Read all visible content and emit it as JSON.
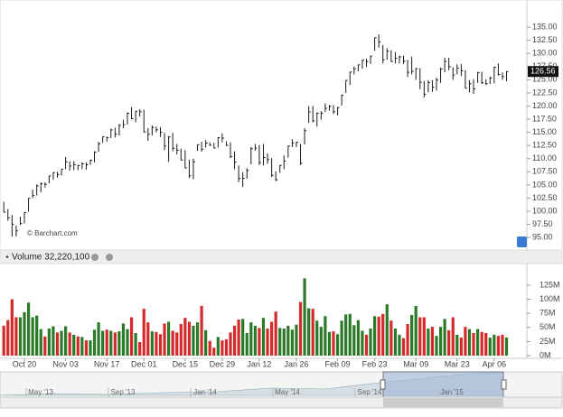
{
  "chart_data": {
    "type": "ohlc",
    "credit": "© Barchart.com",
    "categories": [
      null,
      null,
      null,
      null,
      null,
      "Oct 20",
      null,
      null,
      null,
      null,
      null,
      null,
      null,
      null,
      null,
      "Nov 03",
      null,
      null,
      null,
      null,
      null,
      null,
      null,
      null,
      null,
      "Nov 17",
      null,
      null,
      null,
      null,
      null,
      null,
      null,
      null,
      "Dec 01",
      null,
      null,
      null,
      null,
      null,
      null,
      null,
      null,
      null,
      "Dec 15",
      null,
      null,
      null,
      null,
      null,
      null,
      null,
      null,
      "Dec 29",
      null,
      null,
      null,
      null,
      null,
      null,
      null,
      null,
      "Jan 12",
      null,
      null,
      null,
      null,
      null,
      null,
      null,
      null,
      "Jan 26",
      null,
      null,
      null,
      null,
      null,
      null,
      null,
      null,
      null,
      "Feb 09",
      null,
      null,
      null,
      null,
      null,
      null,
      null,
      null,
      "Feb 23",
      null,
      null,
      null,
      null,
      null,
      null,
      null,
      null,
      null,
      "Mar 09",
      null,
      null,
      null,
      null,
      null,
      null,
      null,
      null,
      null,
      "Mar 23",
      null,
      null,
      null,
      null,
      null,
      null,
      null,
      null,
      "Apr 06",
      null,
      null,
      null
    ],
    "high": [
      101.8,
      100.4,
      99.3,
      97.3,
      99.0,
      99.8,
      102.5,
      104.1,
      105.1,
      105.5,
      105.5,
      106.7,
      107.4,
      107.5,
      108.0,
      110.3,
      109.5,
      109.5,
      108.8,
      109.3,
      109.3,
      109.8,
      111.4,
      113.2,
      114.2,
      114.2,
      115.7,
      115.9,
      116.6,
      117.4,
      118.8,
      119.8,
      119.1,
      119.4,
      119.3,
      115.8,
      116.3,
      116.1,
      116.0,
      114.9,
      114.3,
      114.9,
      112.8,
      111.9,
      111.6,
      109.8,
      110.0,
      112.7,
      113.2,
      113.5,
      113.1,
      113.0,
      114.1,
      114.8,
      113.3,
      113.1,
      111.4,
      108.7,
      107.4,
      108.2,
      112.2,
      112.8,
      112.6,
      112.8,
      111.0,
      110.1,
      107.6,
      108.8,
      110.6,
      112.5,
      113.7,
      113.2,
      112.8,
      115.8,
      120.0,
      120.0,
      118.8,
      119.0,
      120.5,
      120.2,
      120.2,
      119.8,
      122.2,
      124.9,
      126.5,
      127.5,
      127.9,
      128.8,
      129.0,
      129.5,
      133.0,
      133.6,
      131.6,
      131.0,
      130.6,
      130.3,
      129.6,
      129.6,
      128.8,
      129.4,
      127.2,
      127.2,
      124.8,
      124.9,
      124.9,
      125.4,
      127.3,
      129.2,
      129.2,
      127.4,
      127.9,
      128.0,
      126.8,
      124.9,
      125.1,
      126.5,
      126.5,
      125.1,
      125.6,
      127.5,
      128.1,
      126.4,
      126.6
    ],
    "low": [
      99.8,
      98.2,
      95.2,
      95.2,
      97.4,
      97.7,
      99.9,
      102.5,
      103.0,
      103.6,
      104.5,
      105.3,
      106.0,
      106.4,
      106.8,
      108.0,
      107.7,
      107.8,
      107.8,
      108.0,
      107.9,
      108.8,
      109.3,
      111.3,
      113.0,
      113.2,
      113.9,
      114.0,
      114.4,
      115.8,
      116.5,
      117.5,
      116.9,
      118.0,
      115.0,
      113.4,
      114.4,
      115.0,
      114.1,
      111.6,
      109.4,
      111.4,
      110.8,
      109.7,
      108.2,
      106.3,
      106.1,
      111.5,
      111.3,
      112.1,
      112.4,
      112.0,
      112.1,
      113.1,
      112.4,
      110.1,
      108.0,
      105.5,
      104.6,
      106.2,
      108.9,
      111.5,
      108.8,
      108.7,
      109.0,
      106.5,
      105.7,
      107.3,
      108.0,
      110.2,
      112.2,
      112.2,
      108.8,
      112.7,
      116.8,
      116.9,
      116.1,
      117.4,
      118.9,
      119.1,
      118.5,
      118.2,
      120.1,
      122.5,
      124.0,
      126.0,
      126.6,
      127.1,
      127.4,
      128.0,
      130.5,
      131.1,
      128.1,
      128.8,
      128.4,
      128.1,
      128.1,
      128.0,
      125.5,
      126.0,
      125.0,
      123.2,
      121.6,
      122.6,
      122.7,
      122.9,
      124.4,
      126.4,
      126.8,
      125.0,
      126.0,
      125.7,
      123.4,
      122.6,
      122.3,
      124.4,
      124.2,
      124.0,
      124.2,
      124.3,
      125.8,
      125.0,
      124.7
    ],
    "close": [
      99.81,
      98.75,
      97.54,
      96.26,
      97.67,
      99.76,
      102.47,
      102.99,
      104.83,
      105.22,
      105.11,
      106.74,
      107.34,
      106.98,
      108.0,
      109.4,
      108.6,
      108.86,
      108.7,
      109.01,
      108.83,
      109.7,
      111.25,
      112.82,
      114.18,
      113.99,
      115.47,
      114.67,
      116.31,
      116.47,
      118.63,
      117.6,
      119.0,
      118.93,
      115.07,
      114.63,
      115.93,
      115.49,
      115.0,
      112.4,
      114.12,
      111.95,
      111.62,
      109.73,
      108.23,
      106.75,
      109.41,
      112.65,
      111.78,
      112.94,
      112.54,
      112.01,
      113.99,
      113.91,
      112.52,
      110.38,
      109.33,
      106.25,
      106.26,
      107.75,
      111.89,
      112.01,
      109.25,
      110.22,
      109.8,
      106.82,
      105.99,
      108.72,
      109.55,
      112.4,
      112.98,
      113.1,
      109.14,
      115.31,
      118.9,
      117.16,
      118.63,
      118.65,
      119.56,
      119.94,
      118.93,
      119.72,
      122.02,
      124.88,
      126.46,
      127.08,
      127.83,
      128.72,
      128.45,
      129.5,
      133.0,
      132.17,
      128.79,
      130.42,
      128.46,
      129.09,
      129.36,
      128.54,
      126.41,
      126.6,
      127.14,
      124.51,
      122.24,
      124.45,
      123.59,
      124.95,
      127.04,
      128.47,
      127.5,
      125.9,
      127.21,
      126.69,
      123.38,
      124.24,
      123.25,
      126.37,
      124.43,
      124.25,
      125.32,
      127.35,
      126.01,
      125.6,
      126.56
    ],
    "color": "#1a1a1a",
    "ylim": [
      92.8,
      139.3
    ],
    "yticks": [
      {
        "value": 95,
        "label": "95.00"
      },
      {
        "value": 97.5,
        "label": "97.50"
      },
      {
        "value": 100,
        "label": "100.00"
      },
      {
        "value": 102.5,
        "label": "102.50"
      },
      {
        "value": 105,
        "label": "105.00"
      },
      {
        "value": 107.5,
        "label": "107.50"
      },
      {
        "value": 110,
        "label": "110.00"
      },
      {
        "value": 112.5,
        "label": "112.50"
      },
      {
        "value": 115,
        "label": "115.00"
      },
      {
        "value": 117.5,
        "label": "117.50"
      },
      {
        "value": 120,
        "label": "120.00"
      },
      {
        "value": 122.5,
        "label": "122.50"
      },
      {
        "value": 125,
        "label": "125.00"
      },
      {
        "value": 127.5,
        "label": "127.50"
      },
      {
        "value": 130,
        "label": "130.00"
      },
      {
        "value": 132.5,
        "label": "132.50"
      },
      {
        "value": 135,
        "label": "135.00"
      }
    ],
    "volume": {
      "type": "bar",
      "title": "Volume 32,220,100",
      "values": [
        53,
        63,
        100,
        68,
        68,
        77,
        94,
        68,
        71,
        47,
        34,
        48,
        52,
        41,
        44,
        52,
        41,
        37,
        34,
        33,
        27,
        27,
        46,
        59,
        44,
        46,
        44,
        41,
        43,
        57,
        47,
        68,
        40,
        24,
        83,
        59,
        43,
        42,
        38,
        57,
        60,
        44,
        41,
        56,
        67,
        60,
        53,
        59,
        88,
        45,
        26,
        14,
        33,
        27,
        29,
        41,
        53,
        64,
        65,
        40,
        59,
        53,
        49,
        67,
        48,
        60,
        78,
        49,
        48,
        53,
        46,
        55,
        95,
        137,
        84,
        83,
        62,
        51,
        70,
        42,
        43,
        38,
        62,
        73,
        74,
        54,
        63,
        44,
        37,
        48,
        70,
        69,
        74,
        91,
        62,
        48,
        37,
        31,
        56,
        72,
        88,
        68,
        68,
        48,
        51,
        35,
        51,
        65,
        45,
        68,
        37,
        32,
        51,
        47,
        40,
        47,
        42,
        40,
        32,
        37,
        35,
        37,
        32
      ],
      "up_color": "#2a7a2a",
      "down_color": "#d42a2a",
      "ylim": [
        0,
        152
      ],
      "yticks": [
        {
          "value": 0,
          "label": "0M"
        },
        {
          "value": 25,
          "label": "25M"
        },
        {
          "value": 50,
          "label": "50M"
        },
        {
          "value": 75,
          "label": "75M"
        },
        {
          "value": 100,
          "label": "100M"
        },
        {
          "value": 125,
          "label": "125M"
        }
      ]
    },
    "navigator_labels": [
      "May '13",
      "Sep '13",
      "Jan '14",
      "May '14",
      "Sep '14",
      "Jan '15"
    ]
  }
}
